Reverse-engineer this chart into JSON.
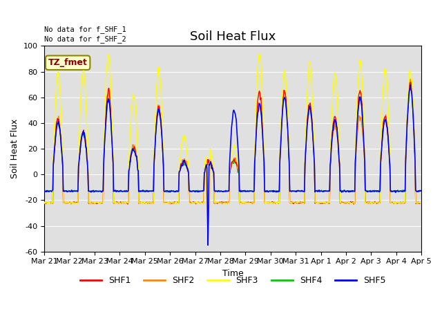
{
  "title": "Soil Heat Flux",
  "xlabel": "Time",
  "ylabel": "Soil Heat Flux",
  "ylim": [
    -60,
    100
  ],
  "yticks": [
    -60,
    -40,
    -20,
    0,
    20,
    40,
    60,
    80,
    100
  ],
  "note1": "No data for f_SHF_1",
  "note2": "No data for f_SHF_2",
  "box_label": "TZ_fmet",
  "legend_labels": [
    "SHF1",
    "SHF2",
    "SHF3",
    "SHF4",
    "SHF5"
  ],
  "colors": {
    "SHF1": "#ff0000",
    "SHF2": "#ff8800",
    "SHF3": "#ffff00",
    "SHF4": "#00cc00",
    "SHF5": "#0000ff"
  },
  "background_color": "#e0e0e0",
  "title_fontsize": 13,
  "axis_fontsize": 9,
  "tick_fontsize": 8,
  "n_days": 15,
  "x_tick_labels": [
    "Mar 21",
    "Mar 22",
    "Mar 23",
    "Mar 24",
    "Mar 25",
    "Mar 26",
    "Mar 27",
    "Mar 28",
    "Mar 29",
    "Mar 30",
    "Mar 31",
    "Apr 1",
    "Apr 2",
    "Apr 3",
    "Apr 4",
    "Apr 5"
  ],
  "shf1_peaks": [
    42,
    32,
    65,
    21,
    52,
    10,
    10,
    11,
    65,
    65,
    55,
    45,
    65,
    45,
    72
  ],
  "shf2_peaks": [
    44,
    34,
    61,
    22,
    53,
    11,
    11,
    12,
    55,
    65,
    52,
    38,
    45,
    46,
    73
  ],
  "shf3_peaks": [
    78,
    81,
    93,
    62,
    83,
    29,
    21,
    21,
    94,
    80,
    86,
    78,
    88,
    82,
    80
  ],
  "shf4_peaks": [
    40,
    32,
    58,
    20,
    50,
    9,
    9,
    10,
    55,
    60,
    52,
    42,
    60,
    43,
    68
  ],
  "shf5_peaks": [
    40,
    32,
    58,
    20,
    50,
    9,
    9,
    50,
    55,
    60,
    52,
    42,
    60,
    43,
    68
  ],
  "night_vals": [
    -22,
    -22,
    -22,
    -13,
    -13
  ],
  "anomaly_day": 6,
  "anomaly_val": -55,
  "pts_per_day": 48
}
